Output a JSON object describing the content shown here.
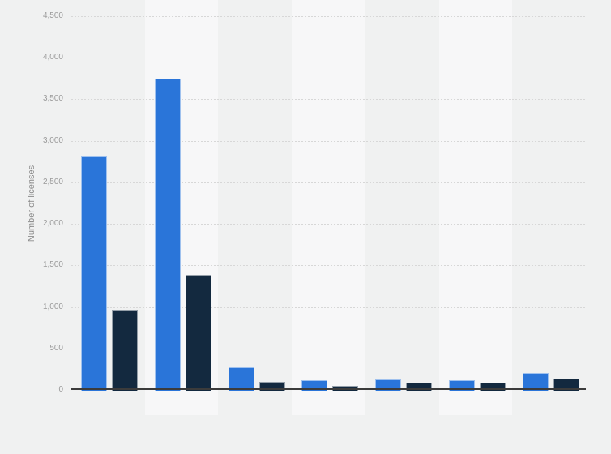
{
  "page": {
    "background_color": "#f0f1f1",
    "plot_band_color": "#f7f7f8",
    "grid_color": "#d7d7d7",
    "axis_line_color": "#3b3b3b",
    "tick_label_color": "#9a9a9a",
    "axis_title_color": "#8c8c8c"
  },
  "chart_data": {
    "type": "bar",
    "title": "",
    "xlabel": "",
    "ylabel": "Number of licenses",
    "ylim": [
      0,
      4500
    ],
    "yticks": [
      0,
      500,
      1000,
      1500,
      2000,
      2500,
      3000,
      3500,
      4000,
      4500
    ],
    "ytick_labels": [
      "0",
      "500",
      "1,000",
      "1,500",
      "2,000",
      "2,500",
      "3,000",
      "3,500",
      "4,000",
      "4,500"
    ],
    "grid": "horizontal dotted lines at each y tick",
    "plot_bands": "alternating vertical bands, every second category lighter",
    "legend": "none",
    "x_axis_labels": "none visible",
    "categories": [
      "",
      "",
      "",
      "",
      "",
      "",
      ""
    ],
    "series": [
      {
        "name": "blue-series",
        "color": "#2a75d9",
        "values": [
          2820,
          3760,
          280,
          130,
          140,
          130,
          215
        ]
      },
      {
        "name": "dark-navy-series",
        "color": "#13293f",
        "values": [
          980,
          1400,
          110,
          60,
          95,
          100,
          150
        ]
      }
    ]
  }
}
